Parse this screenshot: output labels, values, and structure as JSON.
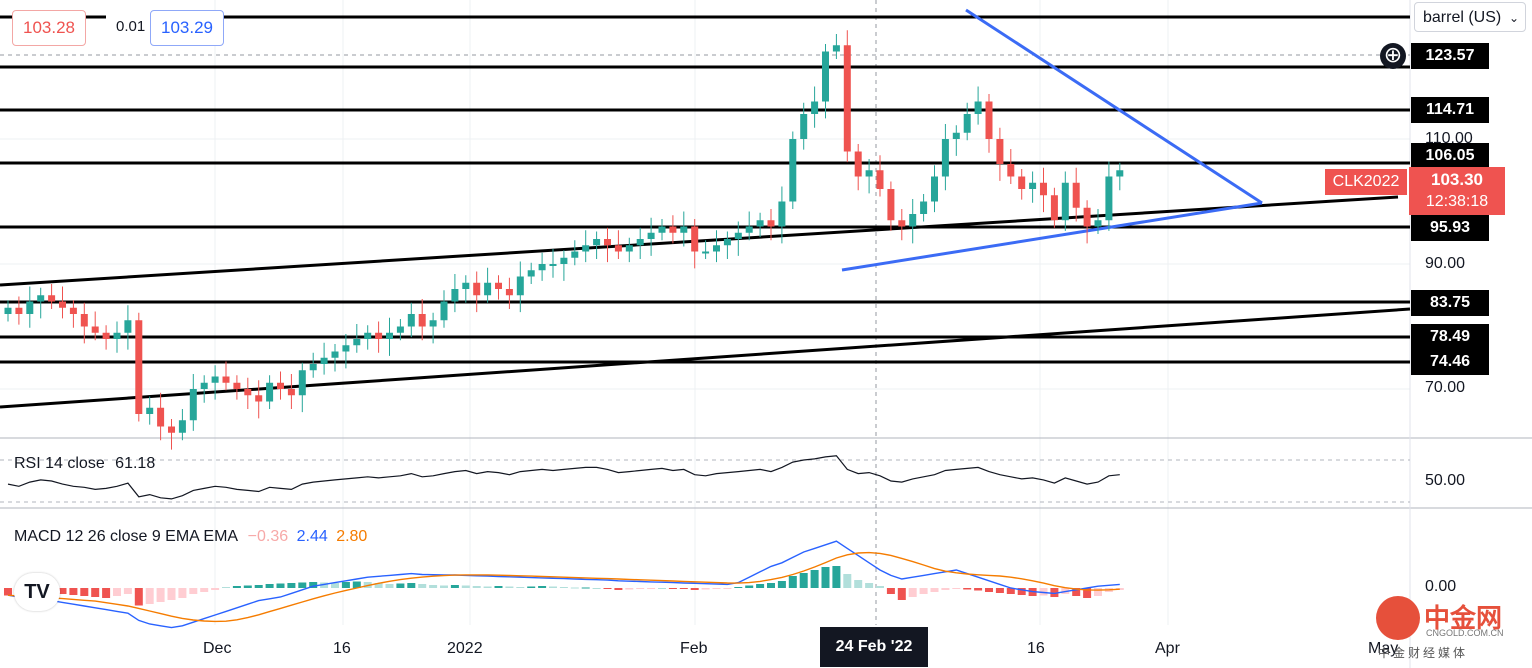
{
  "header": {
    "bid": "103.28",
    "spread": "0.01",
    "ask": "103.29",
    "unit": "barrel (US)",
    "unit_icon": "chevron-down-icon"
  },
  "price_levels": [
    "123.57",
    "114.71",
    "106.05",
    "95.93",
    "83.75",
    "78.49",
    "74.46"
  ],
  "axis_ticks": [
    "110.00",
    "90.00",
    "70.00"
  ],
  "symbol": "CLK2022",
  "last_price": "103.30",
  "countdown": "12:38:18",
  "rsi": {
    "label": "RSI 14 close",
    "value": "61.18",
    "axis": "50.00"
  },
  "macd": {
    "label": "MACD 12 26 close 9 EMA EMA",
    "hist": "−0.36",
    "macd": "2.44",
    "signal": "2.80",
    "axis": "0.00"
  },
  "dates": [
    "Dec",
    "16",
    "2022",
    "Feb",
    "16",
    "Apr",
    "May"
  ],
  "crosshair_date": "24 Feb '22",
  "logo": "TV",
  "watermark": {
    "name": "中金网",
    "domain": "CNGOLD.COM.CN",
    "sub": "中金财经媒体"
  },
  "colors": {
    "up": "#26a69a",
    "down": "#ef5350",
    "macd": "#2962ff",
    "signal": "#f57c00",
    "trend": "#3b6bf5"
  },
  "chart_data": {
    "type": "candlestick",
    "title": "",
    "ylim": [
      60,
      130
    ],
    "xlabel": "",
    "ylabel": "",
    "candles_approx_close": [
      83,
      82,
      84,
      85,
      84,
      83,
      82,
      80,
      79,
      78,
      79,
      81,
      66,
      67,
      64,
      63,
      65,
      70,
      71,
      72,
      71,
      70,
      69,
      68,
      71,
      70,
      69,
      73,
      74,
      75,
      76,
      77,
      78,
      79,
      78,
      79,
      80,
      82,
      80,
      81,
      84,
      86,
      87,
      85,
      87,
      86,
      85,
      88,
      89,
      90,
      90,
      91,
      92,
      93,
      94,
      93,
      92,
      93,
      94,
      95,
      96,
      95,
      96,
      92,
      92,
      93,
      94,
      95,
      96,
      97,
      96,
      100,
      110,
      114,
      116,
      124,
      125,
      108,
      104,
      105,
      102,
      97,
      96,
      98,
      100,
      104,
      110,
      111,
      114,
      116,
      110,
      106,
      104,
      102,
      103,
      101,
      97,
      103,
      99,
      96,
      97,
      104,
      105
    ]
  }
}
